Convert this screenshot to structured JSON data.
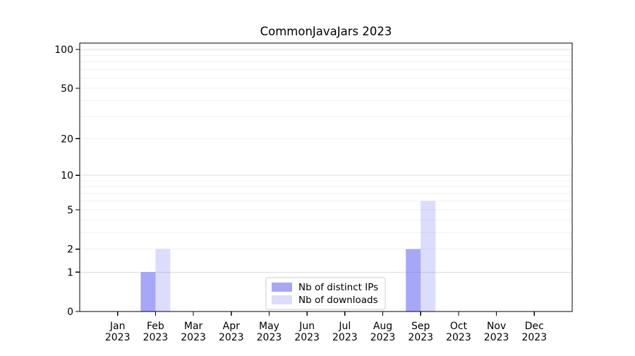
{
  "figure": {
    "background": "#ffffff",
    "spine_color": "#000000"
  },
  "chart_data": {
    "type": "bar",
    "title": "CommonJavaJars 2023",
    "xlabel": "",
    "ylabel": "",
    "categories": [
      "Jan",
      "Feb",
      "Mar",
      "Apr",
      "May",
      "Jun",
      "Jul",
      "Aug",
      "Sep",
      "Oct",
      "Nov",
      "Dec"
    ],
    "category_year": "2023",
    "series": [
      {
        "name": "Nb of distinct IPs",
        "color": "#5050f0",
        "alpha": 0.5,
        "rendered_color": "#a8a8f7",
        "values": [
          0,
          1,
          0,
          0,
          0,
          0,
          0,
          0,
          2,
          0,
          0,
          0
        ]
      },
      {
        "name": "Nb of downloads",
        "color": "#5050f0",
        "alpha": 0.2,
        "rendered_color": "#dcdcfb",
        "values": [
          0,
          2,
          0,
          0,
          0,
          0,
          0,
          0,
          6,
          0,
          0,
          0
        ]
      }
    ],
    "y_axis": {
      "scale": "log1p",
      "tick_values": [
        0,
        1,
        2,
        5,
        10,
        20,
        50,
        100
      ],
      "minor_grid_values": [
        2,
        3,
        4,
        5,
        6,
        7,
        8,
        9,
        20,
        30,
        40,
        50,
        60,
        70,
        80,
        90
      ],
      "major_grid_values": [
        1,
        10,
        100
      ],
      "range": [
        0,
        115
      ]
    },
    "grid": {
      "minor_color": "#f0f0f0",
      "major_color": "#dcdcdc"
    },
    "legend": {
      "position": "bottom-center-inside",
      "border_color": "#cccccc",
      "background": "#ffffff",
      "entries": [
        "Nb of distinct IPs",
        "Nb of downloads"
      ]
    }
  }
}
